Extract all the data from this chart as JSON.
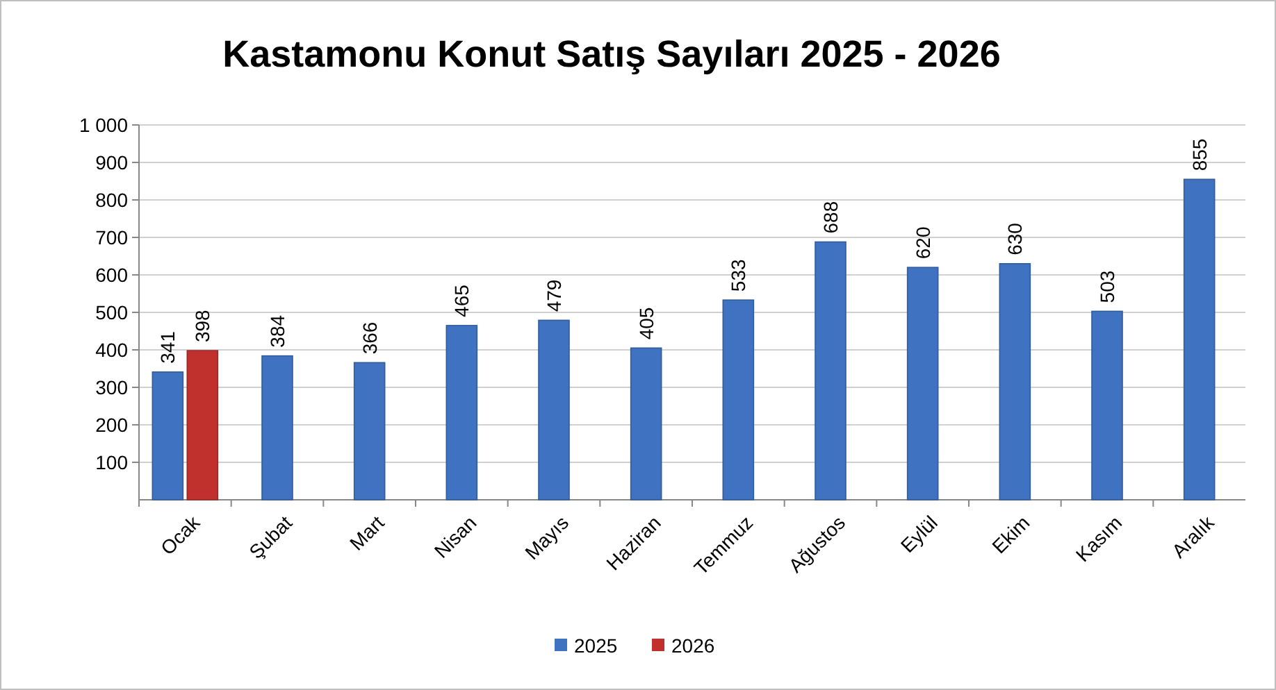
{
  "chart_data": {
    "type": "bar",
    "title": "Kastamonu Konut Satış Sayıları 2025 - 2026",
    "categories": [
      "Ocak",
      "Şubat",
      "Mart",
      "Nisan",
      "Mayıs",
      "Haziran",
      "Temmuz",
      "Ağustos",
      "Eylül",
      "Ekim",
      "Kasım",
      "Aralık"
    ],
    "series": [
      {
        "name": "2025",
        "color": "#3f72c0",
        "values": [
          341,
          384,
          366,
          465,
          479,
          405,
          533,
          688,
          620,
          630,
          503,
          855
        ]
      },
      {
        "name": "2026",
        "color": "#c0302c",
        "values": [
          398,
          null,
          null,
          null,
          null,
          null,
          null,
          null,
          null,
          null,
          null,
          null
        ]
      }
    ],
    "ylim": [
      0,
      1000
    ],
    "yticks": [
      100,
      200,
      300,
      400,
      500,
      600,
      700,
      800,
      900,
      {
        "value": 1000,
        "label": "1 000"
      }
    ],
    "grid": "y",
    "legend": "bottom",
    "data_labels": true
  }
}
